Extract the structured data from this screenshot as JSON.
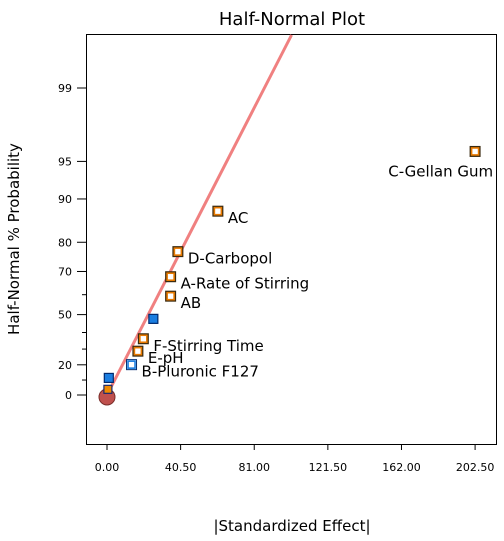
{
  "chart_data": {
    "type": "scatter",
    "title": "Half-Normal Plot",
    "xlabel": "|Standardized Effect|",
    "ylabel": "Half-Normal % Probability",
    "xlim": [
      -11,
      214
    ],
    "x_ticks": [
      {
        "value": 0,
        "label": "0.00"
      },
      {
        "value": 40.5,
        "label": "40.50"
      },
      {
        "value": 81,
        "label": "81.00"
      },
      {
        "value": 121.5,
        "label": "121.50"
      },
      {
        "value": 162,
        "label": "162.00"
      },
      {
        "value": 202.5,
        "label": "202.50"
      }
    ],
    "y_ticks": [
      {
        "value": 0,
        "label": "0"
      },
      {
        "value": 20,
        "label": "20"
      },
      {
        "value": 50,
        "label": "50"
      },
      {
        "value": 70,
        "label": "70"
      },
      {
        "value": 80,
        "label": "80"
      },
      {
        "value": 90,
        "label": "90"
      },
      {
        "value": 95,
        "label": "95"
      },
      {
        "value": 99,
        "label": "99"
      }
    ],
    "reference_line": {
      "color": "#f08080",
      "x": [
        0,
        117
      ],
      "y_percent": [
        0,
        99.95
      ]
    },
    "labeled_effects": [
      {
        "label": "C-Gellan Gum",
        "x": 202.5,
        "y_percent": 95.9
      },
      {
        "label": "AC",
        "x": 61,
        "y_percent": 87.7
      },
      {
        "label": "D-Carbopol",
        "x": 39,
        "y_percent": 77.1
      },
      {
        "label": "A-Rate of Stirring",
        "x": 35,
        "y_percent": 67.9
      },
      {
        "label": "AB",
        "x": 35,
        "y_percent": 59.3
      },
      {
        "label": "F-Stirring Time",
        "x": 20,
        "y_percent": 36.3
      },
      {
        "label": "E-pH",
        "x": 17,
        "y_percent": 28.7
      },
      {
        "label": "B-Pluronic F127",
        "x": 13.5,
        "y_percent": 20.1
      }
    ],
    "unlabeled_effects": [
      {
        "x": 25.5,
        "y_percent": 47.7
      },
      {
        "x": 1,
        "y_percent": 11.4
      }
    ],
    "unlabeled_effects_2": [
      {
        "x": 0.5,
        "y_percent": 3.8
      }
    ],
    "baseline_point": {
      "x": 0,
      "y_percent": 0
    },
    "colors": {
      "labeled_fill": "#ffffff",
      "labeled_border": "#e87a00",
      "labeled_outline": "#3a2a10",
      "error_fill": "#1a7de0",
      "error_border": "#002a6e",
      "baseline_fill": "#c0504d",
      "baseline_border": "#7a2e2a",
      "small_fill": "#f08a00",
      "small_border": "#1a2a6e"
    }
  }
}
